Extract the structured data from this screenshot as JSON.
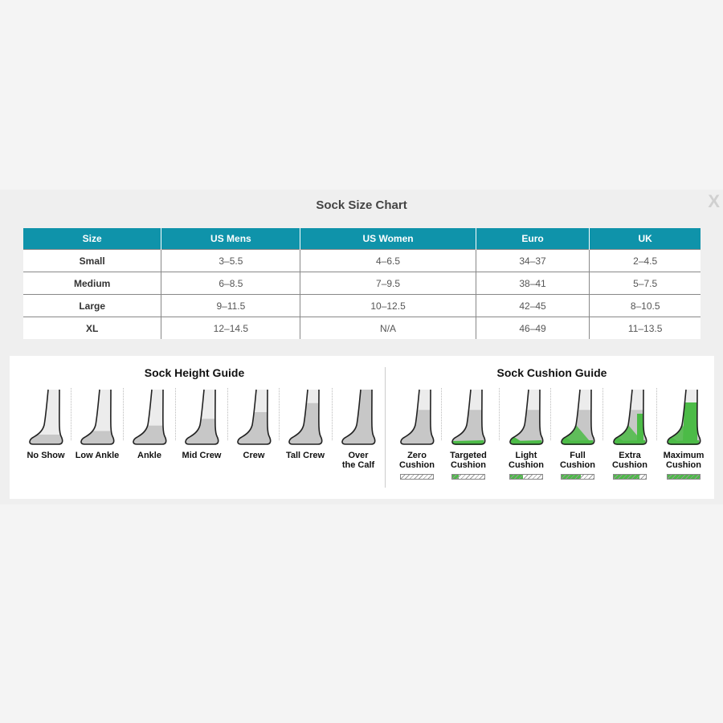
{
  "modal": {
    "title": "Sock Size Chart",
    "close_label": "X"
  },
  "size_table": {
    "headers": [
      "Size",
      "US Mens",
      "US Women",
      "Euro",
      "UK"
    ],
    "rows": [
      [
        "Small",
        "3–5.5",
        "4–6.5",
        "34–37",
        "2–4.5"
      ],
      [
        "Medium",
        "6–8.5",
        "7–9.5",
        "38–41",
        "5–7.5"
      ],
      [
        "Large",
        "9–11.5",
        "10–12.5",
        "42–45",
        "8–10.5"
      ],
      [
        "XL",
        "12–14.5",
        "N/A",
        "46–49",
        "11–13.5"
      ]
    ]
  },
  "height_guide": {
    "title": "Sock Height Guide",
    "items": [
      {
        "label": "No Show",
        "level": 0.0
      },
      {
        "label": "Low Ankle",
        "level": 0.08
      },
      {
        "label": "Ankle",
        "level": 0.2
      },
      {
        "label": "Mid Crew",
        "level": 0.35
      },
      {
        "label": "Crew",
        "level": 0.5
      },
      {
        "label": "Tall Crew",
        "level": 0.7
      },
      {
        "label": "Over\nthe Calf",
        "level": 1.0
      }
    ]
  },
  "cushion_guide": {
    "title": "Sock Cushion Guide",
    "items": [
      {
        "label": "Zero\nCushion",
        "level": 0
      },
      {
        "label": "Targeted\nCushion",
        "level": 1
      },
      {
        "label": "Light\nCushion",
        "level": 2
      },
      {
        "label": "Full\nCushion",
        "level": 3
      },
      {
        "label": "Extra\nCushion",
        "level": 4
      },
      {
        "label": "Maximum\nCushion",
        "level": 5
      }
    ]
  },
  "colors": {
    "header": "#0f93aa",
    "cushion": "#4cbb47",
    "sock": "#c7c7c7"
  }
}
